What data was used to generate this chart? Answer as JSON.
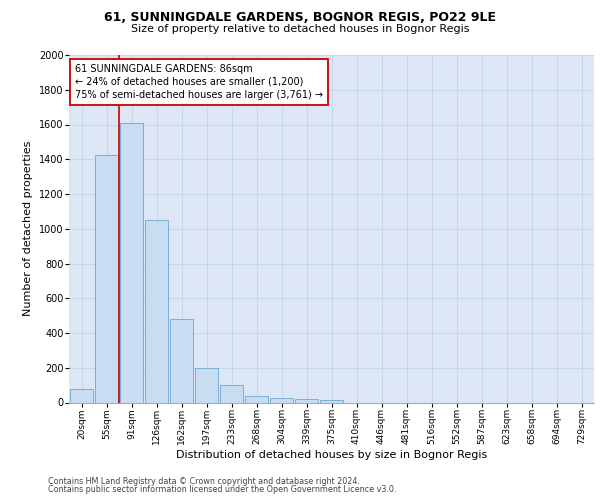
{
  "title_line1": "61, SUNNINGDALE GARDENS, BOGNOR REGIS, PO22 9LE",
  "title_line2": "Size of property relative to detached houses in Bognor Regis",
  "xlabel": "Distribution of detached houses by size in Bognor Regis",
  "ylabel": "Number of detached properties",
  "footer_line1": "Contains HM Land Registry data © Crown copyright and database right 2024.",
  "footer_line2": "Contains public sector information licensed under the Open Government Licence v3.0.",
  "bar_labels": [
    "20sqm",
    "55sqm",
    "91sqm",
    "126sqm",
    "162sqm",
    "197sqm",
    "233sqm",
    "268sqm",
    "304sqm",
    "339sqm",
    "375sqm",
    "410sqm",
    "446sqm",
    "481sqm",
    "516sqm",
    "552sqm",
    "587sqm",
    "623sqm",
    "658sqm",
    "694sqm",
    "729sqm"
  ],
  "bar_values": [
    75,
    1425,
    1610,
    1050,
    480,
    200,
    100,
    35,
    25,
    20,
    15,
    0,
    0,
    0,
    0,
    0,
    0,
    0,
    0,
    0,
    0
  ],
  "bar_color": "#c9ddf2",
  "bar_edge_color": "#7bafd4",
  "annotation_text": "61 SUNNINGDALE GARDENS: 86sqm\n← 24% of detached houses are smaller (1,200)\n75% of semi-detached houses are larger (3,761) →",
  "annotation_box_color": "#ffffff",
  "annotation_box_edge": "#cc0000",
  "vline_color": "#cc0000",
  "ylim_max": 2000,
  "yticks": [
    0,
    200,
    400,
    600,
    800,
    1000,
    1200,
    1400,
    1600,
    1800,
    2000
  ],
  "grid_color": "#c8d4e8",
  "background_color": "#dce6f5",
  "title1_fontsize": 9,
  "title2_fontsize": 8,
  "ylabel_fontsize": 8,
  "xlabel_fontsize": 8,
  "tick_fontsize": 6.5,
  "annotation_fontsize": 7,
  "footer_fontsize": 5.8
}
